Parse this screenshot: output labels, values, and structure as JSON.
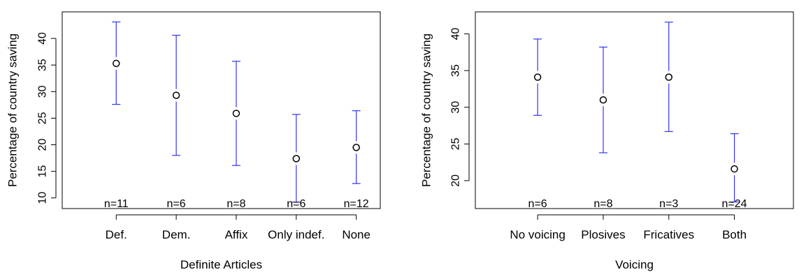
{
  "chart_data": [
    {
      "type": "errorbar",
      "xlabel": "Definite Articles",
      "ylabel": "Percentage of country saving",
      "categories": [
        "Def.",
        "Dem.",
        "Affix",
        "Only indef.",
        "None"
      ],
      "n_labels": [
        "n=11",
        "n=6",
        "n=8",
        "n=6",
        "n=12"
      ],
      "means": [
        35.3,
        29.3,
        25.9,
        17.4,
        19.5
      ],
      "lower": [
        27.6,
        18.0,
        16.1,
        9.2,
        12.7
      ],
      "upper": [
        43.1,
        40.6,
        35.7,
        25.7,
        26.4
      ],
      "yticks": [
        10,
        15,
        20,
        25,
        30,
        35,
        40
      ],
      "ylim": [
        8,
        45
      ],
      "xlim": [
        0.1,
        5.4
      ],
      "bar_color": "#3333ee"
    },
    {
      "type": "errorbar",
      "xlabel": "Voicing",
      "ylabel": "Percentage of country saving",
      "categories": [
        "No voicing",
        "Plosives",
        "Fricatives",
        "Both"
      ],
      "n_labels": [
        "n=6",
        "n=8",
        "n=3",
        "n=24"
      ],
      "means": [
        34.1,
        31.0,
        34.1,
        21.6
      ],
      "lower": [
        28.9,
        23.8,
        26.7,
        17.1
      ],
      "upper": [
        39.3,
        38.2,
        41.6,
        26.4
      ],
      "yticks": [
        20,
        25,
        30,
        35,
        40
      ],
      "ylim": [
        16.2,
        43
      ],
      "xlim": [
        0.05,
        4.9
      ],
      "bar_color": "#3333ee"
    }
  ]
}
